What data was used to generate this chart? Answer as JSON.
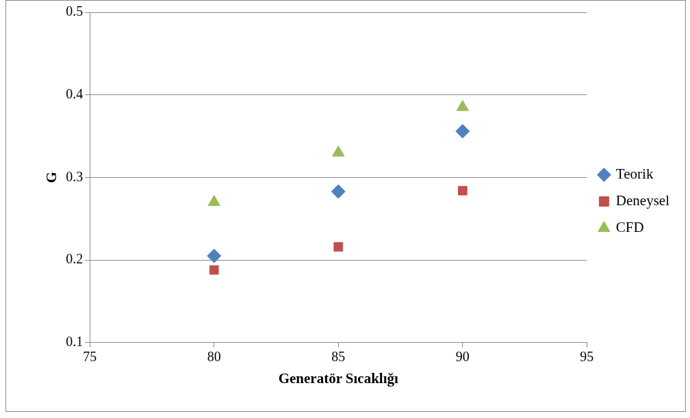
{
  "chart_data": {
    "type": "scatter",
    "xlabel": "Generatör Sıcaklığı",
    "ylabel": "G",
    "x": [
      80,
      85,
      90
    ],
    "series": [
      {
        "name": "Teorik",
        "color": "#4f81bd",
        "marker": "diamond",
        "values": [
          0.205,
          0.283,
          0.356
        ]
      },
      {
        "name": "Deneysel",
        "color": "#c0504d",
        "marker": "square",
        "values": [
          0.188,
          0.216,
          0.284
        ]
      },
      {
        "name": "CFD",
        "color": "#9bbb59",
        "marker": "triangle",
        "values": [
          0.27,
          0.33,
          0.385
        ]
      }
    ],
    "xlim": [
      75,
      95
    ],
    "xticks": [
      75,
      80,
      85,
      90,
      95
    ],
    "ylim": [
      0.1,
      0.5
    ],
    "yticks": [
      0.1,
      0.2,
      0.3,
      0.4,
      0.5
    ],
    "grid": "y",
    "legend": "right"
  }
}
